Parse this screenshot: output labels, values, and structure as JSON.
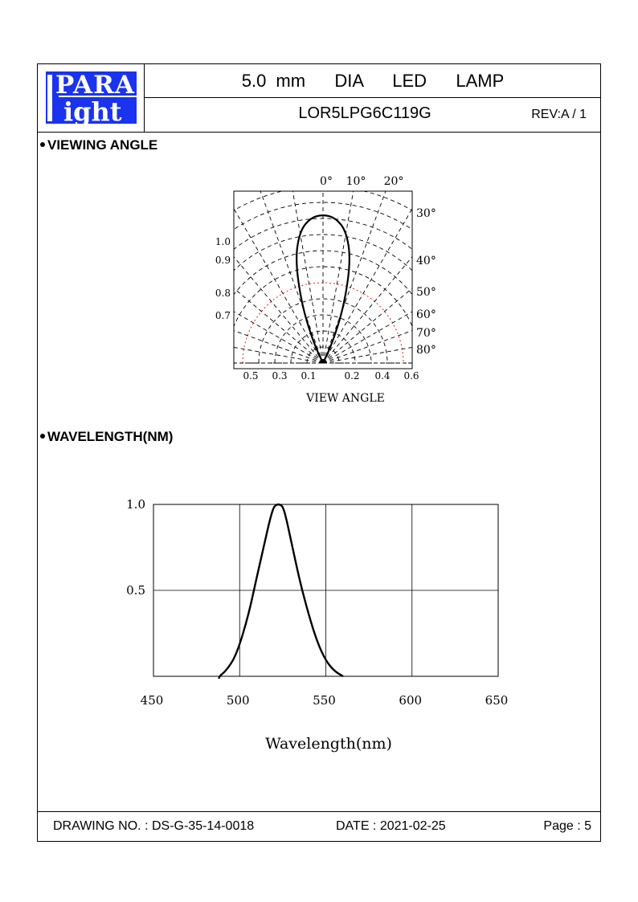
{
  "header": {
    "logo_top": "PARA",
    "logo_bottom": "ight",
    "logo_letter_l": "L",
    "title": "5.0 mm   DIA   LED   LAMP",
    "part_number": "LOR5LPG6C119G",
    "revision": "REV:A / 1"
  },
  "sections": {
    "viewing_angle": "VIEWING ANGLE",
    "wavelength": "WAVELENGTH(NM)"
  },
  "chart_data": [
    {
      "type": "polar",
      "xlabel": "VIEW  ANGLE",
      "angle_labels_top": [
        "0°",
        "10°",
        "20°"
      ],
      "angle_labels_right": [
        "30°",
        "40°",
        "50°",
        "60°",
        "70°",
        "80°"
      ],
      "radial_labels_left": [
        "1.0",
        "0.9",
        "0.8",
        "0.7"
      ],
      "bottom_labels_left": [
        "0.5",
        "0.3",
        "0.1"
      ],
      "bottom_labels_right": [
        "0.2",
        "0.4",
        "0.6"
      ],
      "series": [
        {
          "angle_deg": [
            0,
            5,
            10,
            15,
            20,
            25,
            30
          ],
          "relative_intensity": [
            1.0,
            0.98,
            0.9,
            0.72,
            0.42,
            0.15,
            0.0
          ]
        }
      ]
    },
    {
      "type": "line",
      "xlabel": "Wavelength(nm)",
      "ylabel": "",
      "xlim": [
        450,
        650
      ],
      "ylim": [
        0,
        1.0
      ],
      "x_ticks": [
        "450",
        "500",
        "550",
        "600",
        "650"
      ],
      "y_ticks": [
        "1.0",
        "0.5"
      ],
      "grid": true,
      "series": [
        {
          "x": [
            488,
            492,
            498,
            505,
            510,
            515,
            518,
            520,
            522,
            523,
            525,
            527,
            530,
            535,
            540,
            545,
            550,
            555,
            560
          ],
          "y": [
            0.0,
            0.03,
            0.12,
            0.35,
            0.58,
            0.8,
            0.93,
            0.99,
            1.0,
            1.0,
            0.99,
            0.92,
            0.78,
            0.55,
            0.36,
            0.2,
            0.09,
            0.03,
            0.0
          ]
        }
      ]
    }
  ],
  "footer": {
    "drawing_no": "DRAWING NO. : DS-G-35-14-0018",
    "date": "DATE : 2021-02-25",
    "page": "Page : 5"
  },
  "colors": {
    "logo_blue": "#1a33ee",
    "guide_red": "#e02020"
  }
}
